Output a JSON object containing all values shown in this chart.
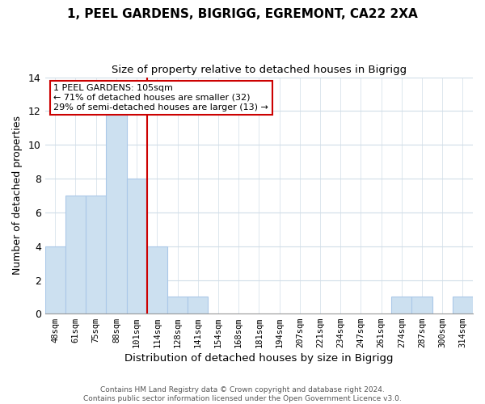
{
  "title_line1": "1, PEEL GARDENS, BIGRIGG, EGREMONT, CA22 2XA",
  "title_line2": "Size of property relative to detached houses in Bigrigg",
  "xlabel": "Distribution of detached houses by size in Bigrigg",
  "ylabel": "Number of detached properties",
  "bin_labels": [
    "48sqm",
    "61sqm",
    "75sqm",
    "88sqm",
    "101sqm",
    "114sqm",
    "128sqm",
    "141sqm",
    "154sqm",
    "168sqm",
    "181sqm",
    "194sqm",
    "207sqm",
    "221sqm",
    "234sqm",
    "247sqm",
    "261sqm",
    "274sqm",
    "287sqm",
    "300sqm",
    "314sqm"
  ],
  "bar_heights": [
    4,
    7,
    7,
    12,
    8,
    4,
    1,
    1,
    0,
    0,
    0,
    0,
    0,
    0,
    0,
    0,
    0,
    1,
    1,
    0,
    1
  ],
  "bar_color": "#cce0f0",
  "bar_edgecolor": "#aac8e8",
  "vline_color": "#cc0000",
  "vline_idx": 4.5,
  "ylim": [
    0,
    14
  ],
  "yticks": [
    0,
    2,
    4,
    6,
    8,
    10,
    12,
    14
  ],
  "annotation_title": "1 PEEL GARDENS: 105sqm",
  "annotation_line1": "← 71% of detached houses are smaller (32)",
  "annotation_line2": "29% of semi-detached houses are larger (13) →",
  "annotation_box_color": "#ffffff",
  "annotation_box_edgecolor": "#cc0000",
  "footer_line1": "Contains HM Land Registry data © Crown copyright and database right 2024.",
  "footer_line2": "Contains public sector information licensed under the Open Government Licence v3.0.",
  "background_color": "#ffffff",
  "grid_color": "#d0dde8"
}
